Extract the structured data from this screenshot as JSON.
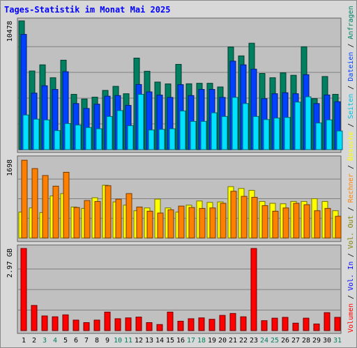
{
  "title": "Tages-Statistik im Monat Mai 2025",
  "chart_data": [
    {
      "type": "bar",
      "panel": "top",
      "ymax_label": "10478",
      "ymax": 10478,
      "categories": [
        "1",
        "2",
        "3",
        "4",
        "5",
        "6",
        "7",
        "8",
        "9",
        "10",
        "11",
        "12",
        "13",
        "14",
        "15",
        "16",
        "17",
        "18",
        "19",
        "20",
        "21",
        "22",
        "23",
        "24",
        "25",
        "26",
        "27",
        "28",
        "29",
        "30",
        "31"
      ],
      "series": [
        {
          "name": "Anfragen",
          "color": "#008060",
          "values": [
            10478,
            6400,
            6900,
            5850,
            7280,
            4500,
            4120,
            4270,
            4820,
            5150,
            4550,
            7450,
            6380,
            5500,
            5350,
            6940,
            5360,
            5400,
            5400,
            5100,
            8350,
            7630,
            8660,
            6200,
            5850,
            6250,
            6050,
            8370,
            4150,
            5950,
            4500
          ]
        },
        {
          "name": "Dateien",
          "color": "#0040ff",
          "values": [
            9380,
            4600,
            5200,
            4900,
            6340,
            3750,
            3350,
            3700,
            4350,
            4400,
            3600,
            5300,
            4700,
            4440,
            4250,
            5290,
            4400,
            4900,
            4900,
            4250,
            7200,
            6900,
            6550,
            4150,
            4550,
            4630,
            4550,
            6100,
            3750,
            4450,
            3900
          ]
        },
        {
          "name": "Seiten",
          "color": "#00e0ff",
          "values": [
            2820,
            2480,
            2420,
            1550,
            2120,
            2000,
            1800,
            1700,
            2700,
            3180,
            1950,
            4500,
            1600,
            1650,
            1700,
            3150,
            2300,
            2300,
            3000,
            2700,
            4250,
            3750,
            2700,
            2450,
            2570,
            2620,
            3870,
            4300,
            2170,
            2420,
            1520
          ]
        }
      ]
    },
    {
      "type": "bar",
      "panel": "middle",
      "ymax_label": "1698",
      "ymax": 1698,
      "categories": [
        "1",
        "2",
        "3",
        "4",
        "5",
        "6",
        "7",
        "8",
        "9",
        "10",
        "11",
        "12",
        "13",
        "14",
        "15",
        "16",
        "17",
        "18",
        "19",
        "20",
        "21",
        "22",
        "23",
        "24",
        "25",
        "26",
        "27",
        "28",
        "29",
        "30",
        "31"
      ],
      "series": [
        {
          "name": "Besuche",
          "color": "#ffff00",
          "values": [
            560,
            650,
            550,
            910,
            960,
            670,
            640,
            870,
            1140,
            780,
            710,
            590,
            650,
            840,
            650,
            560,
            710,
            800,
            770,
            780,
            1110,
            1070,
            1030,
            790,
            750,
            740,
            790,
            790,
            850,
            790,
            590
          ]
        },
        {
          "name": "Rechner",
          "color": "#ff8000",
          "values": [
            1680,
            1500,
            1350,
            1120,
            1420,
            660,
            810,
            790,
            1130,
            840,
            960,
            670,
            580,
            540,
            610,
            690,
            660,
            640,
            650,
            750,
            1010,
            900,
            880,
            700,
            580,
            650,
            750,
            720,
            590,
            640,
            470
          ]
        }
      ]
    },
    {
      "type": "bar",
      "panel": "bottom",
      "ymax_label": "2.97 GB",
      "ymax": 2.97,
      "categories": [
        "1",
        "2",
        "3",
        "4",
        "5",
        "6",
        "7",
        "8",
        "9",
        "10",
        "11",
        "12",
        "13",
        "14",
        "15",
        "16",
        "17",
        "18",
        "19",
        "20",
        "21",
        "22",
        "23",
        "24",
        "25",
        "26",
        "27",
        "28",
        "29",
        "30",
        "31"
      ],
      "series": [
        {
          "name": "Volumen",
          "color": "#ff0000",
          "values": [
            2.97,
            0.91,
            0.53,
            0.5,
            0.57,
            0.38,
            0.29,
            0.38,
            0.67,
            0.43,
            0.46,
            0.49,
            0.29,
            0.22,
            0.67,
            0.34,
            0.43,
            0.46,
            0.41,
            0.55,
            0.62,
            0.5,
            2.97,
            0.36,
            0.45,
            0.48,
            0.27,
            0.45,
            0.24,
            0.65,
            0.48
          ]
        }
      ]
    }
  ],
  "right_legend": [
    {
      "text": "Volumen",
      "color": "#ff0000"
    },
    {
      "text": " / ",
      "color": "#000000"
    },
    {
      "text": "Vol. In",
      "color": "#0000ff"
    },
    {
      "text": " / ",
      "color": "#000000"
    },
    {
      "text": "Vol. Out",
      "color": "#808000"
    },
    {
      "text": " / ",
      "color": "#000000"
    },
    {
      "text": "Rechner",
      "color": "#ff8000"
    },
    {
      "text": " / ",
      "color": "#000000"
    },
    {
      "text": "Besuche",
      "color": "#ffff00"
    },
    {
      "text": " / ",
      "color": "#000000"
    },
    {
      "text": "Seiten",
      "color": "#00c0e0"
    },
    {
      "text": " / ",
      "color": "#000000"
    },
    {
      "text": "Dateien",
      "color": "#0040ff"
    },
    {
      "text": " / ",
      "color": "#000000"
    },
    {
      "text": "Anfragen",
      "color": "#008060"
    }
  ],
  "day_label_colors": [
    "#000000",
    "#000000",
    "#008060",
    "#008060",
    "#000000",
    "#000000",
    "#000000",
    "#000000",
    "#000000",
    "#008060",
    "#008060",
    "#000000",
    "#000000",
    "#000000",
    "#000000",
    "#000000",
    "#008060",
    "#008060",
    "#000000",
    "#000000",
    "#000000",
    "#000000",
    "#000000",
    "#008060",
    "#008060",
    "#000000",
    "#000000",
    "#000000",
    "#000000",
    "#000000",
    "#008060"
  ]
}
